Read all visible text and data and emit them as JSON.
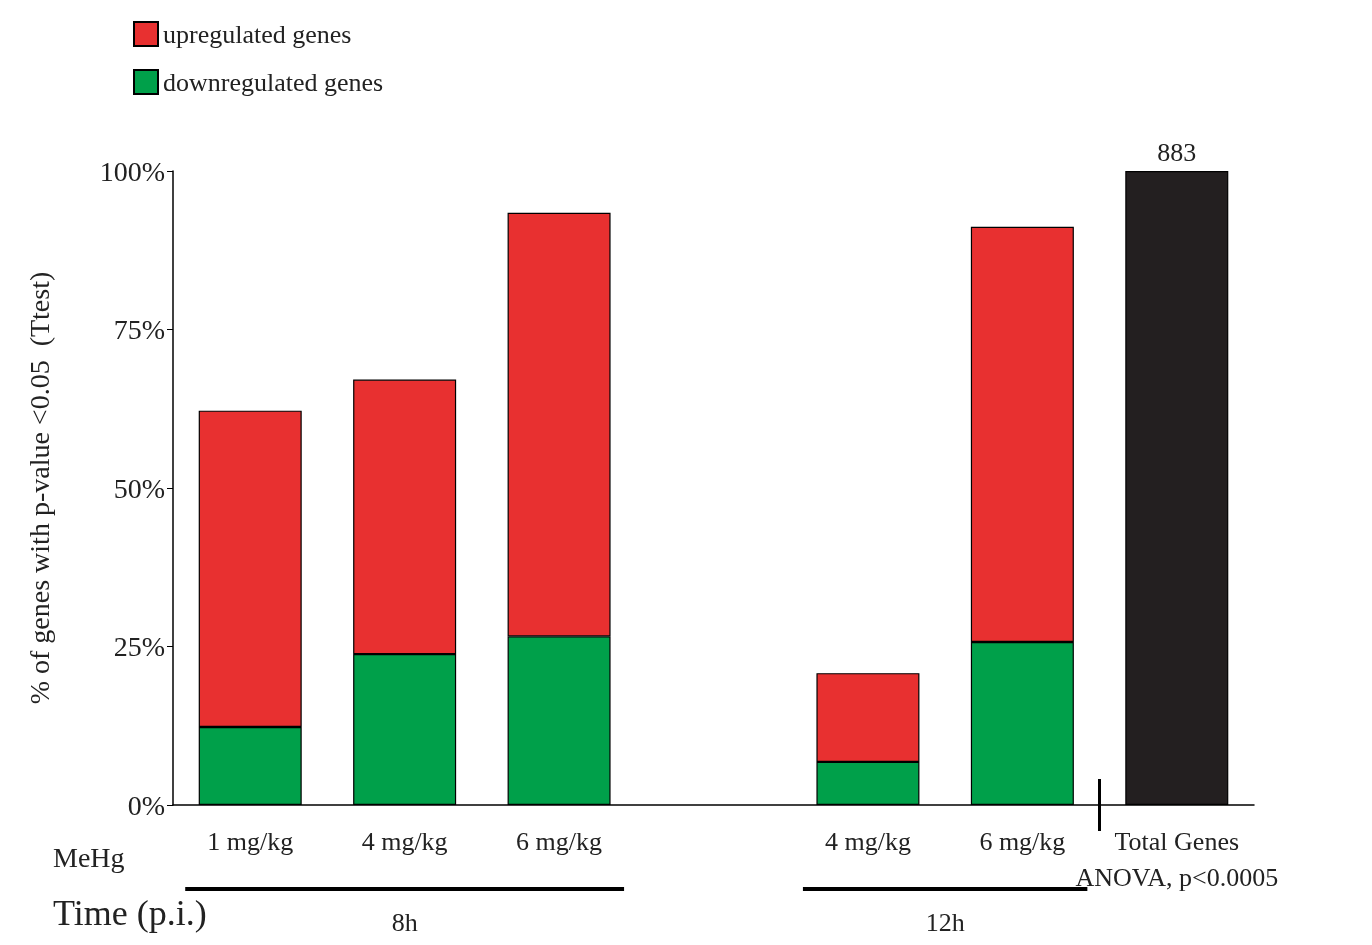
{
  "chart_data": {
    "type": "bar",
    "stacked": true,
    "categories": [
      "1 mg/kg",
      "4 mg/kg",
      "6 mg/kg",
      null,
      "4 mg/kg",
      "6 mg/kg",
      "Total Genes\nANOVA, p<0.0005"
    ],
    "series": [
      {
        "name": "downregulated genes",
        "color": "#00a04a",
        "values": [
          12.3,
          23.8,
          26.6,
          null,
          6.8,
          25.7,
          null
        ]
      },
      {
        "name": "upregulated genes",
        "color": "#e83030",
        "values": [
          49.9,
          43.3,
          66.8,
          null,
          14,
          65.5,
          null
        ]
      },
      {
        "color": "#231f20",
        "values": [
          null,
          null,
          null,
          null,
          null,
          null,
          100
        ]
      }
    ],
    "ylabel": "% of genes with p-value <0.05  (Ttest)",
    "ylim": [
      0,
      100
    ],
    "yticks": [
      {
        "value": 0,
        "label": "0%"
      },
      {
        "value": 25,
        "label": "25%"
      },
      {
        "value": 50,
        "label": "50%"
      },
      {
        "value": 75,
        "label": "75%"
      },
      {
        "value": 100,
        "label": "100%"
      }
    ],
    "annotations": [
      "MeHg",
      "Time (p.i.)",
      "8h",
      "12h",
      {
        "text": "883",
        "x": "Total Genes\nANOVA, p<0.0005",
        "y": 100
      }
    ],
    "legend": "top left",
    "grid": false
  }
}
